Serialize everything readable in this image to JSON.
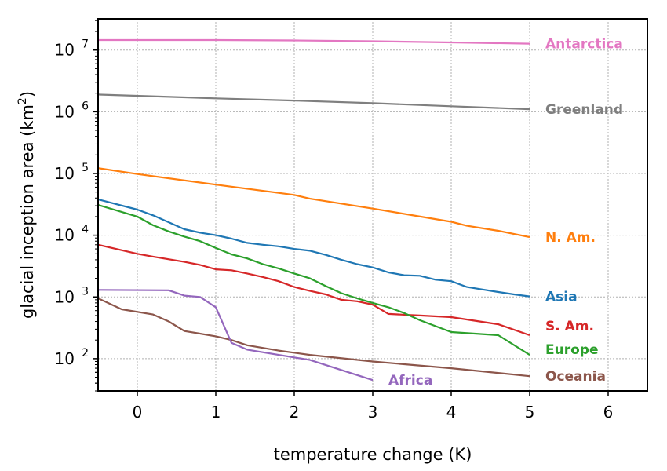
{
  "chart_data": {
    "type": "line",
    "xlabel": "temperature change (K)",
    "ylabel_main": "glacial inception area (km",
    "ylabel_sup": "2",
    "ylabel_end": ")",
    "xlim": [
      -0.5,
      6.5
    ],
    "ylim": [
      30,
      32000000
    ],
    "yscale": "log",
    "grid": true,
    "x_ticks": [
      0,
      1,
      2,
      3,
      4,
      5,
      6
    ],
    "y_ticks": [
      {
        "value": 100,
        "base": "10",
        "exp": "2"
      },
      {
        "value": 1000,
        "base": "10",
        "exp": "3"
      },
      {
        "value": 10000,
        "base": "10",
        "exp": "4"
      },
      {
        "value": 100000,
        "base": "10",
        "exp": "5"
      },
      {
        "value": 1000000,
        "base": "10",
        "exp": "6"
      },
      {
        "value": 10000000,
        "base": "10",
        "exp": "7"
      }
    ],
    "series": [
      {
        "name": "Antarctica",
        "color": "#e377c2",
        "x": [
          -0.5,
          1,
          2,
          3,
          4,
          5
        ],
        "y": [
          14500000,
          14500000,
          14300000,
          13900000,
          13300000,
          12700000
        ]
      },
      {
        "name": "Greenland",
        "color": "#7f7f7f",
        "x": [
          -0.5,
          1,
          2,
          3,
          4,
          5
        ],
        "y": [
          1900000,
          1650000,
          1520000,
          1380000,
          1230000,
          1100000
        ]
      },
      {
        "name": "N. Am.",
        "color": "#ff7f0e",
        "x": [
          -0.5,
          0,
          1,
          2,
          2.2,
          3,
          4,
          4.2,
          4.6,
          5
        ],
        "y": [
          122000,
          98000,
          66000,
          45000,
          39000,
          27000,
          16500,
          14200,
          11800,
          9300
        ]
      },
      {
        "name": "Asia",
        "color": "#1f77b4",
        "x": [
          -0.5,
          0,
          0.2,
          0.6,
          0.8,
          1,
          1.2,
          1.4,
          1.6,
          1.8,
          2,
          2.2,
          2.4,
          2.6,
          2.8,
          3,
          3.2,
          3.4,
          3.6,
          3.8,
          4,
          4.2,
          4.4,
          4.6,
          4.8,
          5
        ],
        "y": [
          38000,
          26000,
          21000,
          12500,
          11000,
          10000,
          8800,
          7500,
          7000,
          6600,
          6000,
          5600,
          4800,
          4000,
          3400,
          3000,
          2500,
          2250,
          2200,
          1900,
          1800,
          1450,
          1320,
          1200,
          1100,
          1020
        ]
      },
      {
        "name": "S. Am.",
        "color": "#d62728",
        "x": [
          -0.5,
          0,
          0.2,
          0.6,
          0.8,
          1,
          1.2,
          1.4,
          1.6,
          1.8,
          2,
          2.2,
          2.4,
          2.6,
          2.8,
          3,
          3.2,
          3.6,
          4,
          4.6,
          5
        ],
        "y": [
          7000,
          5000,
          4500,
          3700,
          3300,
          2800,
          2700,
          2400,
          2100,
          1800,
          1450,
          1250,
          1100,
          900,
          850,
          750,
          530,
          500,
          470,
          360,
          240
        ]
      },
      {
        "name": "Europe",
        "color": "#2ca02c",
        "x": [
          -0.5,
          0,
          0.2,
          0.4,
          0.6,
          0.8,
          1,
          1.2,
          1.4,
          1.6,
          1.8,
          2,
          2.2,
          2.4,
          2.6,
          2.8,
          3,
          3.2,
          3.4,
          3.6,
          4,
          4.6,
          5
        ],
        "y": [
          31000,
          20000,
          14500,
          11500,
          9500,
          8000,
          6200,
          4900,
          4200,
          3400,
          2900,
          2400,
          2000,
          1500,
          1150,
          950,
          800,
          680,
          550,
          420,
          270,
          240,
          115
        ]
      },
      {
        "name": "Oceania",
        "color": "#8c564b",
        "x": [
          -0.5,
          -0.2,
          0.2,
          0.4,
          0.6,
          1,
          1.2,
          1.4,
          1.8,
          2.2,
          3,
          4,
          5
        ],
        "y": [
          950,
          630,
          520,
          400,
          280,
          230,
          200,
          165,
          135,
          115,
          90,
          70,
          52
        ]
      },
      {
        "name": "Africa",
        "color": "#9467bd",
        "x": [
          -0.5,
          0.4,
          0.6,
          0.8,
          1,
          1.2,
          1.4,
          2.2,
          3
        ],
        "y": [
          1300,
          1280,
          1050,
          1000,
          680,
          180,
          140,
          95,
          45
        ]
      }
    ]
  }
}
